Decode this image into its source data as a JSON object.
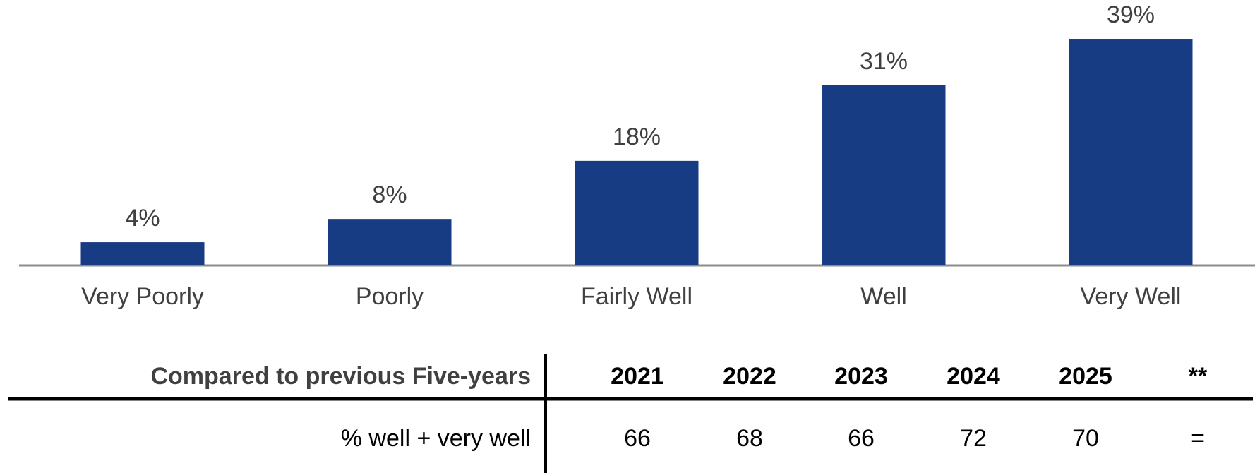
{
  "chart_data": {
    "type": "bar",
    "categories": [
      "Very Poorly",
      "Poorly",
      "Fairly Well",
      "Well",
      "Very Well"
    ],
    "values": [
      4,
      8,
      18,
      31,
      39
    ],
    "value_labels": [
      "4%",
      "8%",
      "18%",
      "31%",
      "39%"
    ],
    "color": "#173c83"
  },
  "table": {
    "header": [
      "Compared to previous Five-years",
      2021,
      2022,
      2023,
      2024,
      2025,
      "**"
    ],
    "rows": [
      [
        "% well + very well",
        66,
        68,
        66,
        72,
        70,
        "="
      ]
    ]
  }
}
